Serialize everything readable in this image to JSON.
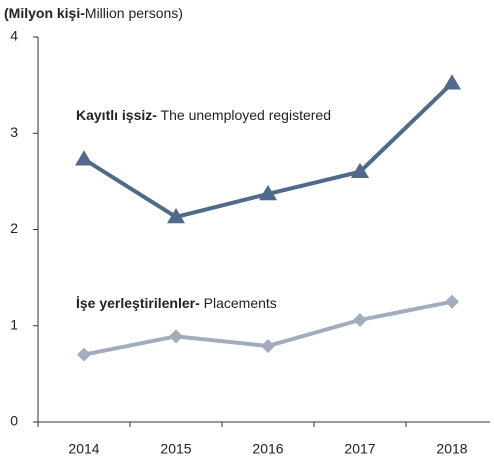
{
  "chart_data": {
    "type": "line",
    "y_label": {
      "bold": "(Milyon kişi-",
      "text": "Million persons)"
    },
    "categories": [
      "2014",
      "2015",
      "2016",
      "2017",
      "2018"
    ],
    "series": [
      {
        "name": "Kayıtlı işsiz-",
        "description": " The unemployed registered",
        "color": "#4f6a8a",
        "marker": "triangle",
        "values": [
          2.73,
          2.13,
          2.37,
          2.6,
          3.52
        ]
      },
      {
        "name": "İşe yerleştirilenler-",
        "description": " Placements",
        "color": "#a3acbf",
        "marker": "diamond",
        "values": [
          0.7,
          0.89,
          0.79,
          1.06,
          1.25
        ]
      }
    ],
    "ylim": [
      0,
      4
    ],
    "yticks": [
      0,
      1,
      2,
      3,
      4
    ],
    "grid": false
  }
}
